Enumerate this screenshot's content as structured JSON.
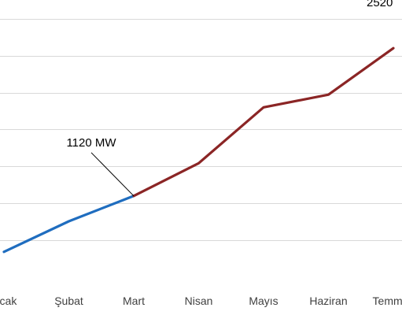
{
  "chart_data": {
    "type": "line",
    "title": "",
    "xlabel": "",
    "ylabel": "",
    "categories": [
      "Ocak",
      "Şubat",
      "Mart",
      "Nisan",
      "Mayıs",
      "Haziran",
      "Temmuz"
    ],
    "series": [
      {
        "color": "#1f6dbf",
        "values": [
          590,
          880,
          1120,
          null,
          null,
          null,
          null
        ]
      },
      {
        "color": "#8b2525",
        "values": [
          null,
          null,
          1120,
          1430,
          1960,
          2080,
          2520
        ]
      }
    ],
    "ylim": [
      350,
      2850
    ],
    "grid": true,
    "grid_values": [
      700,
      1050,
      1400,
      1750,
      2100,
      2450,
      2800
    ],
    "annotations": [
      {
        "text": "1120 MW",
        "category": "Mart",
        "value": 1120
      },
      {
        "text": "2520",
        "category": "Temmuz",
        "value": 2520
      }
    ],
    "colors": {
      "grid": "#d9d9d9",
      "leader_line": "#000000"
    }
  }
}
